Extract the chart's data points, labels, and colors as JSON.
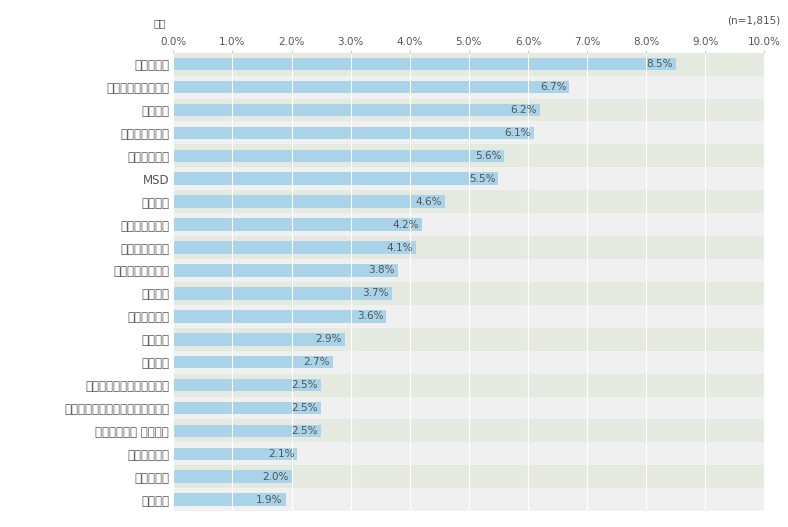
{
  "note": "(n=1,815)",
  "xlabel_label": "企業",
  "categories": [
    "アッヴィ",
    "協和キリン",
    "田辺三菱製薬",
    "ノバルティス ファーマ",
    "日本ベーリンガーインゲルハイム",
    "グラクソ・スミスクライン",
    "サノフィ",
    "中外製薬",
    "小野薬品工業",
    "第一三共",
    "ヤンセンファーマ",
    "旭化成ファーマ",
    "アステラス製薬",
    "エーザイ",
    "MSD",
    "武田薬品工業",
    "アストラゼネカ",
    "大塚製薬",
    "日本イーライリリー",
    "ファイザー"
  ],
  "values": [
    1.9,
    2.0,
    2.1,
    2.5,
    2.5,
    2.5,
    2.7,
    2.9,
    3.6,
    3.7,
    3.8,
    4.1,
    4.2,
    4.6,
    5.5,
    5.6,
    6.1,
    6.2,
    6.7,
    8.5
  ],
  "bar_color": "#a8d3e8",
  "label_color": "#555555",
  "bg_color_beige": "#e5eae0",
  "bg_color_white": "#f0f0f0",
  "xlim": [
    0,
    10.0
  ],
  "xticks": [
    0.0,
    1.0,
    2.0,
    3.0,
    4.0,
    5.0,
    6.0,
    7.0,
    8.0,
    9.0,
    10.0
  ],
  "xtick_labels": [
    "0.0%",
    "1.0%",
    "2.0%",
    "3.0%",
    "4.0%",
    "5.0%",
    "6.0%",
    "7.0%",
    "8.0%",
    "9.0%",
    "10.0%"
  ],
  "bar_label_fontsize": 7.5,
  "tick_fontsize": 7.5,
  "category_fontsize": 8.5
}
